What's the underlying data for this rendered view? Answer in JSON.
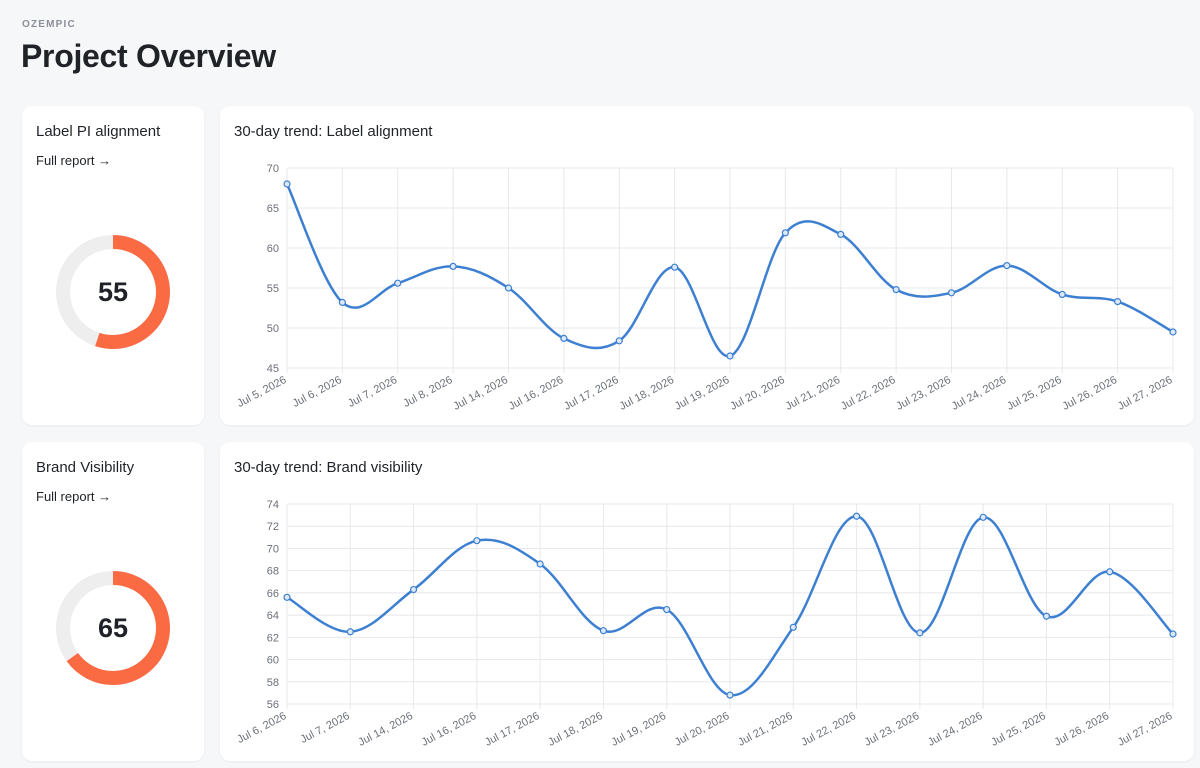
{
  "header": {
    "brand": "OZEMPIC",
    "title": "Project Overview"
  },
  "colors": {
    "accent_orange": "#fa6a43",
    "track_gray": "#eeeeee",
    "line_blue": "#3d7fd1"
  },
  "cards": [
    {
      "title": "Label PI alignment",
      "link_label": "Full report →",
      "score": "55",
      "score_fraction": 0.55,
      "chart_title": "30-day trend: Label alignment"
    },
    {
      "title": "Brand Visibility",
      "link_label": "Full report →",
      "score": "65",
      "score_fraction": 0.65,
      "chart_title": "30-day trend: Brand visibility"
    }
  ],
  "chart_data": [
    {
      "type": "line",
      "title": "30-day trend: Label alignment",
      "xlabel": "",
      "ylabel": "",
      "categories": [
        "Jul 5, 2026",
        "Jul 6, 2026",
        "Jul 7, 2026",
        "Jul 8, 2026",
        "Jul 14, 2026",
        "Jul 16, 2026",
        "Jul 17, 2026",
        "Jul 18, 2026",
        "Jul 19, 2026",
        "Jul 20, 2026",
        "Jul 21, 2026",
        "Jul 22, 2026",
        "Jul 23, 2026",
        "Jul 24, 2026",
        "Jul 25, 2026",
        "Jul 26, 2026",
        "Jul 27, 2026"
      ],
      "series": [
        {
          "values": [
            68,
            53.2,
            55.6,
            57.7,
            55,
            48.7,
            48.4,
            57.6,
            46.5,
            61.9,
            61.7,
            54.8,
            54.4,
            57.8,
            54.2,
            53.3,
            49.5
          ]
        }
      ],
      "ylim": [
        45,
        70
      ],
      "yticks": [
        45,
        50,
        55,
        60,
        65,
        70
      ],
      "grid": true
    },
    {
      "type": "line",
      "title": "30-day trend: Brand visibility",
      "xlabel": "",
      "ylabel": "",
      "categories": [
        "Jul 6, 2026",
        "Jul 7, 2026",
        "Jul 14, 2026",
        "Jul 16, 2026",
        "Jul 17, 2026",
        "Jul 18, 2026",
        "Jul 19, 2026",
        "Jul 20, 2026",
        "Jul 21, 2026",
        "Jul 22, 2026",
        "Jul 23, 2026",
        "Jul 24, 2026",
        "Jul 25, 2026",
        "Jul 26, 2026",
        "Jul 27, 2026"
      ],
      "series": [
        {
          "values": [
            65.6,
            62.5,
            66.3,
            70.7,
            68.6,
            62.6,
            64.5,
            56.8,
            62.9,
            72.9,
            62.4,
            72.8,
            63.9,
            67.9,
            62.3
          ]
        }
      ],
      "ylim": [
        56,
        74
      ],
      "yticks": [
        56,
        58,
        60,
        62,
        64,
        66,
        68,
        70,
        72,
        74
      ],
      "grid": true
    }
  ]
}
